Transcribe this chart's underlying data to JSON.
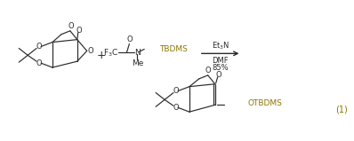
{
  "bg_color": "#ffffff",
  "black": "#2a2a2a",
  "gold": "#8B7500",
  "blue": "#00008B",
  "fig_width": 3.98,
  "fig_height": 1.59,
  "dpi": 100,
  "reagent_above": "Et$_3$N",
  "reagent_below1": "DMF",
  "reagent_below2": "85%",
  "eq_num": "(1)"
}
